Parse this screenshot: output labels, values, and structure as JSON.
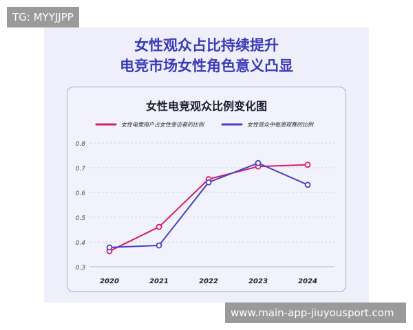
{
  "headline": {
    "line1": "女性观众占比持续提升",
    "line2": "电竞市场女性角色意义凸显"
  },
  "watermarks": {
    "top_left": "TG: MYYJJPP",
    "bottom_right": "www.main-app-jiuyousport.com"
  },
  "chart_data": {
    "type": "line",
    "title": "女性电竞观众比例变化图",
    "categories": [
      "2020",
      "2021",
      "2022",
      "2023",
      "2024"
    ],
    "ylim": [
      0.3,
      0.8
    ],
    "yticks": [
      "0.3",
      "0.4",
      "0.5",
      "0.6",
      "0.7",
      "0.8"
    ],
    "grid": true,
    "legend_position": "top",
    "series": [
      {
        "name": "女性电竞用户占女性受访者的比例",
        "color": "#d81b6a",
        "values": [
          0.363,
          0.461,
          0.654,
          0.705,
          0.712
        ]
      },
      {
        "name": "女性观众中每周观赛的比例",
        "color": "#4a3fbf",
        "values": [
          0.378,
          0.386,
          0.641,
          0.719,
          0.631
        ]
      }
    ]
  }
}
